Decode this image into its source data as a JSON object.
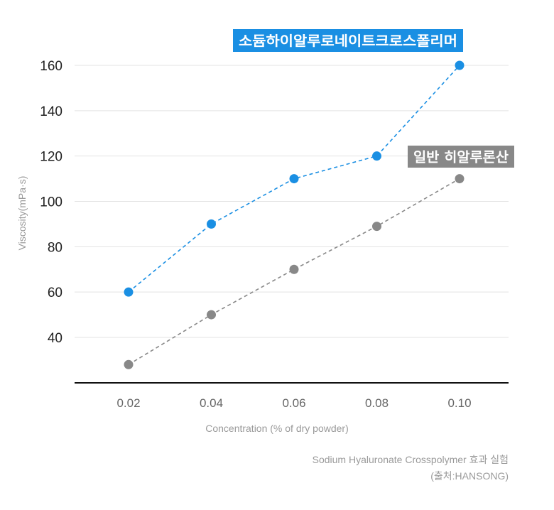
{
  "chart_data": {
    "type": "line",
    "x": [
      "0.02",
      "0.04",
      "0.06",
      "0.08",
      "0.10"
    ],
    "xlabel": "Concentration (% of dry powder)",
    "ylabel": "Viscosity(mPa·s)",
    "yticks": [
      40,
      60,
      80,
      100,
      120,
      140,
      160
    ],
    "ylim": [
      20,
      160
    ],
    "grid": true,
    "series": [
      {
        "name": "소듐하이알루로네이트크로스폴리머",
        "color": "#1a8fe3",
        "values": [
          60,
          90,
          110,
          120,
          160
        ]
      },
      {
        "name": "일반 히알루론산",
        "color": "#888888",
        "values": [
          28,
          50,
          70,
          89,
          110
        ]
      }
    ]
  },
  "caption": {
    "line1": "Sodium Hyaluronate Crosspolymer 효과 실험",
    "line2": "(출처:HANSONG)"
  }
}
